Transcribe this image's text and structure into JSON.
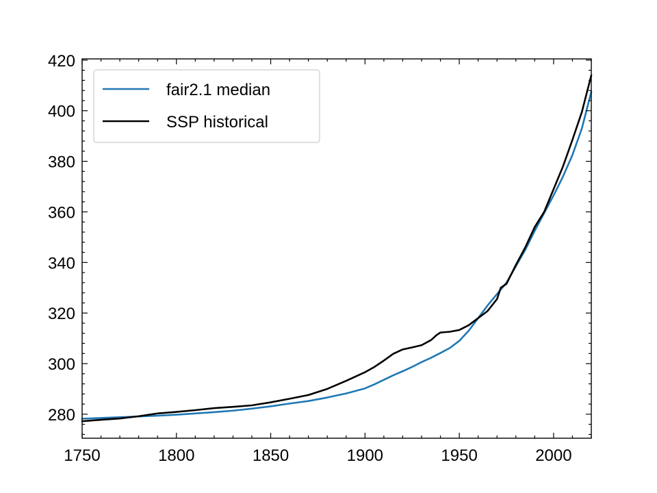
{
  "chart_data": {
    "type": "line",
    "title": "",
    "xlabel": "",
    "ylabel": "",
    "xlim": [
      1750,
      2020
    ],
    "ylim": [
      270.5,
      420.5
    ],
    "x_ticks": [
      1750,
      1800,
      1850,
      1900,
      1950,
      2000
    ],
    "y_ticks": [
      280,
      300,
      320,
      340,
      360,
      380,
      400,
      420
    ],
    "grid": false,
    "legend_position": "top-left",
    "series": [
      {
        "name": "fair2.1 median",
        "color": "#1f77b4",
        "x": [
          1750,
          1760,
          1770,
          1780,
          1790,
          1800,
          1810,
          1820,
          1830,
          1840,
          1850,
          1860,
          1870,
          1880,
          1890,
          1900,
          1905,
          1910,
          1915,
          1920,
          1925,
          1930,
          1935,
          1940,
          1945,
          1950,
          1955,
          1960,
          1965,
          1970,
          1975,
          1980,
          1985,
          1990,
          1995,
          2000,
          2005,
          2010,
          2015,
          2020
        ],
        "values": [
          278.2,
          278.5,
          278.8,
          279.1,
          279.4,
          279.8,
          280.3,
          280.8,
          281.4,
          282.2,
          283.1,
          284.2,
          285.2,
          286.6,
          288.2,
          290.2,
          291.8,
          293.6,
          295.4,
          297.0,
          298.7,
          300.6,
          302.3,
          304.2,
          306.2,
          309.0,
          313.0,
          318.0,
          323.0,
          327.5,
          332.0,
          338.5,
          345.0,
          352.5,
          359.5,
          366.5,
          374.0,
          382.5,
          393.0,
          407.5
        ]
      },
      {
        "name": "SSP historical",
        "color": "#000000",
        "x": [
          1750,
          1760,
          1770,
          1780,
          1790,
          1800,
          1810,
          1820,
          1830,
          1840,
          1850,
          1860,
          1870,
          1880,
          1890,
          1900,
          1905,
          1910,
          1915,
          1920,
          1925,
          1930,
          1935,
          1938,
          1940,
          1945,
          1950,
          1955,
          1960,
          1965,
          1970,
          1972,
          1975,
          1980,
          1985,
          1990,
          1995,
          2000,
          2005,
          2010,
          2015,
          2020
        ],
        "values": [
          277.2,
          277.8,
          278.3,
          279.2,
          280.3,
          280.9,
          281.6,
          282.4,
          282.9,
          283.5,
          284.7,
          286.1,
          287.6,
          290.0,
          293.2,
          296.6,
          298.7,
          301.2,
          303.9,
          305.6,
          306.4,
          307.3,
          309.3,
          311.3,
          312.3,
          312.6,
          313.3,
          315.2,
          318.0,
          320.8,
          325.5,
          330.0,
          331.5,
          339.0,
          346.0,
          354.0,
          360.0,
          369.0,
          378.0,
          388.5,
          399.5,
          414.0
        ]
      }
    ]
  }
}
